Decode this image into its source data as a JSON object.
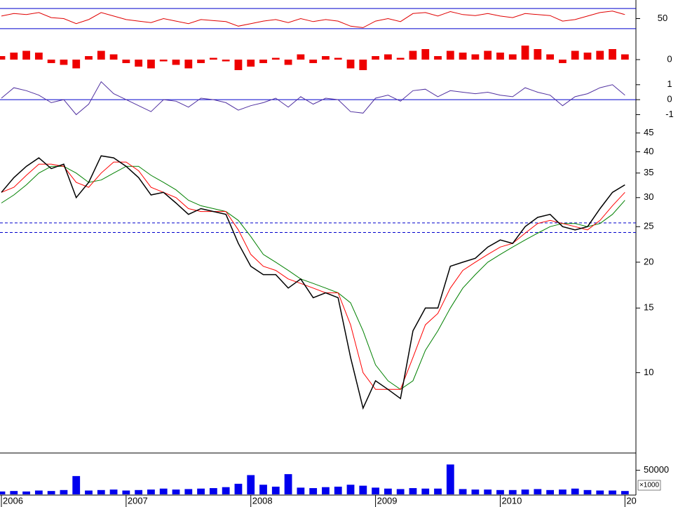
{
  "chart_data": [
    {
      "type": "line",
      "xlim": [
        2006,
        2011.06
      ],
      "ylim": [
        20,
        80
      ],
      "yticks": [
        50
      ],
      "hlines": [
        30,
        70
      ],
      "hline_color": "#0000cc",
      "x": [
        2006,
        2006.1,
        2006.2,
        2006.3,
        2006.4,
        2006.5,
        2006.6,
        2006.7,
        2006.8,
        2006.9,
        2007,
        2007.1,
        2007.2,
        2007.3,
        2007.4,
        2007.5,
        2007.6,
        2007.7,
        2007.8,
        2007.9,
        2008,
        2008.1,
        2008.2,
        2008.3,
        2008.4,
        2008.5,
        2008.6,
        2008.7,
        2008.8,
        2008.9,
        2009,
        2009.1,
        2009.2,
        2009.3,
        2009.4,
        2009.5,
        2009.6,
        2009.7,
        2009.8,
        2009.9,
        2010,
        2010.1,
        2010.2,
        2010.3,
        2010.4,
        2010.5,
        2010.6,
        2010.7,
        2010.8,
        2010.9,
        2011
      ],
      "series": [
        {
          "color": "#e00000",
          "values": [
            55,
            60,
            58,
            62,
            52,
            50,
            40,
            48,
            62,
            55,
            48,
            45,
            42,
            50,
            45,
            40,
            48,
            46,
            44,
            35,
            40,
            45,
            48,
            42,
            50,
            44,
            48,
            45,
            35,
            32,
            45,
            50,
            44,
            60,
            62,
            55,
            64,
            58,
            56,
            60,
            55,
            52,
            60,
            58,
            56,
            45,
            48,
            55,
            62,
            65,
            58
          ]
        }
      ]
    },
    {
      "type": "bar",
      "xlim": [
        2006,
        2011.06
      ],
      "ylim": [
        -0.8,
        1.2
      ],
      "yticks": [
        0
      ],
      "x": [
        2006,
        2006.1,
        2006.2,
        2006.3,
        2006.4,
        2006.5,
        2006.6,
        2006.7,
        2006.8,
        2006.9,
        2007,
        2007.1,
        2007.2,
        2007.3,
        2007.4,
        2007.5,
        2007.6,
        2007.7,
        2007.8,
        2007.9,
        2008,
        2008.1,
        2008.2,
        2008.3,
        2008.4,
        2008.5,
        2008.6,
        2008.7,
        2008.8,
        2008.9,
        2009,
        2009.1,
        2009.2,
        2009.3,
        2009.4,
        2009.5,
        2009.6,
        2009.7,
        2009.8,
        2009.9,
        2010,
        2010.1,
        2010.2,
        2010.3,
        2010.4,
        2010.5,
        2010.6,
        2010.7,
        2010.8,
        2010.9,
        2011
      ],
      "series": [
        {
          "color": "#ee0000",
          "values": [
            0.2,
            0.4,
            0.5,
            0.4,
            -0.2,
            -0.3,
            -0.5,
            0.2,
            0.5,
            0.3,
            -0.2,
            -0.4,
            -0.5,
            -0.1,
            -0.3,
            -0.5,
            -0.2,
            0.1,
            -0.1,
            -0.6,
            -0.4,
            -0.2,
            0.1,
            -0.3,
            0.3,
            -0.2,
            0.2,
            0.1,
            -0.5,
            -0.6,
            0.2,
            0.3,
            0.1,
            0.5,
            0.6,
            0.2,
            0.5,
            0.4,
            0.3,
            0.5,
            0.4,
            0.3,
            0.8,
            0.6,
            0.3,
            -0.2,
            0.5,
            0.4,
            0.5,
            0.6,
            0.3
          ]
        }
      ]
    },
    {
      "type": "line",
      "xlim": [
        2006,
        2011.06
      ],
      "ylim": [
        -1.4,
        1.6
      ],
      "yticks": [
        1,
        0,
        -1
      ],
      "hlines": [
        0
      ],
      "hline_color": "#0000cc",
      "x": [
        2006,
        2006.1,
        2006.2,
        2006.3,
        2006.4,
        2006.5,
        2006.6,
        2006.7,
        2006.8,
        2006.9,
        2007,
        2007.1,
        2007.2,
        2007.3,
        2007.4,
        2007.5,
        2007.6,
        2007.7,
        2007.8,
        2007.9,
        2008,
        2008.1,
        2008.2,
        2008.3,
        2008.4,
        2008.5,
        2008.6,
        2008.7,
        2008.8,
        2008.9,
        2009,
        2009.1,
        2009.2,
        2009.3,
        2009.4,
        2009.5,
        2009.6,
        2009.7,
        2009.8,
        2009.9,
        2010,
        2010.1,
        2010.2,
        2010.3,
        2010.4,
        2010.5,
        2010.6,
        2010.7,
        2010.8,
        2010.9,
        2011
      ],
      "series": [
        {
          "color": "#5030a0",
          "values": [
            0.1,
            0.8,
            0.6,
            0.3,
            -0.2,
            0,
            -1,
            -0.3,
            1.2,
            0.4,
            0,
            -0.4,
            -0.8,
            0,
            -0.1,
            -0.5,
            0.1,
            0,
            -0.2,
            -0.7,
            -0.4,
            -0.2,
            0.1,
            -0.5,
            0.2,
            -0.3,
            0.1,
            0,
            -0.8,
            -0.9,
            0.1,
            0.3,
            -0.1,
            0.6,
            0.7,
            0.2,
            0.6,
            0.5,
            0.4,
            0.5,
            0.3,
            0.2,
            0.8,
            0.5,
            0.3,
            -0.4,
            0.2,
            0.4,
            0.8,
            1,
            0.3
          ]
        }
      ]
    },
    {
      "type": "line",
      "log_scale": true,
      "xlim": [
        2006,
        2011.06
      ],
      "ylim": [
        6.2,
        48
      ],
      "yticks": [
        10,
        15,
        20,
        25,
        30,
        35,
        40,
        45
      ],
      "hlines": [
        25.6,
        24.1
      ],
      "hline_color": "#0000cc",
      "hline_style": "dashed",
      "x": [
        2006,
        2006.1,
        2006.2,
        2006.3,
        2006.4,
        2006.5,
        2006.6,
        2006.7,
        2006.8,
        2006.9,
        2007,
        2007.1,
        2007.2,
        2007.3,
        2007.4,
        2007.5,
        2007.6,
        2007.7,
        2007.8,
        2007.9,
        2008,
        2008.1,
        2008.2,
        2008.3,
        2008.4,
        2008.5,
        2008.6,
        2008.7,
        2008.8,
        2008.9,
        2009,
        2009.1,
        2009.2,
        2009.3,
        2009.4,
        2009.5,
        2009.6,
        2009.7,
        2009.8,
        2009.9,
        2010,
        2010.1,
        2010.2,
        2010.3,
        2010.4,
        2010.5,
        2010.6,
        2010.7,
        2010.8,
        2010.9,
        2011
      ],
      "series": [
        {
          "color": "#008000",
          "values": [
            29,
            30.5,
            32.5,
            35,
            36.5,
            36.5,
            35,
            33,
            33.5,
            35,
            36.5,
            36.5,
            34.5,
            33,
            31.5,
            29.5,
            28.5,
            28,
            27.5,
            26,
            23.5,
            21,
            20,
            19,
            18,
            17.5,
            17,
            16.5,
            15.5,
            13,
            10.5,
            9.5,
            9,
            9.5,
            11.5,
            13,
            15,
            17,
            18.5,
            20,
            21,
            22,
            23,
            24,
            25,
            25.5,
            25.5,
            25,
            25.5,
            27,
            29.5
          ]
        },
        {
          "color": "#ff0000",
          "values": [
            31,
            32,
            34.5,
            37,
            37,
            36.5,
            33,
            32,
            35,
            37.5,
            37.5,
            35.5,
            32,
            31,
            30,
            28,
            27.5,
            27.5,
            27.5,
            24.5,
            21,
            19.5,
            19,
            18,
            17.5,
            17,
            16.5,
            16.5,
            13.5,
            10,
            9,
            9,
            9,
            11,
            13.5,
            14.5,
            17,
            19,
            20,
            21,
            22,
            22.5,
            24,
            25.5,
            26,
            25.5,
            25,
            24.5,
            26,
            28.5,
            31
          ]
        },
        {
          "color": "#000000",
          "values": [
            31,
            34,
            36.5,
            38.5,
            36,
            37,
            30,
            33,
            39,
            38.5,
            36.5,
            34,
            30.5,
            31,
            29,
            27,
            28,
            27.5,
            27,
            22.5,
            19.5,
            18.5,
            18.5,
            17,
            18,
            16,
            16.5,
            16,
            11,
            8,
            9.5,
            9,
            8.5,
            13,
            15,
            15,
            19.5,
            20,
            20.5,
            22,
            23,
            22.5,
            25,
            26.5,
            27,
            25,
            24.5,
            25,
            28,
            31,
            32.5
          ]
        }
      ]
    },
    {
      "type": "bar",
      "xlim": [
        2006,
        2011.06
      ],
      "ylim": [
        0,
        80000
      ],
      "yticks": [
        50000
      ],
      "unit_label": "×1000",
      "xticks": [
        2006,
        2007,
        2008,
        2009,
        2010,
        {
          "value": 2011,
          "label": "20"
        }
      ],
      "x": [
        2006,
        2006.1,
        2006.2,
        2006.3,
        2006.4,
        2006.5,
        2006.6,
        2006.7,
        2006.8,
        2006.9,
        2007,
        2007.1,
        2007.2,
        2007.3,
        2007.4,
        2007.5,
        2007.6,
        2007.7,
        2007.8,
        2007.9,
        2008,
        2008.1,
        2008.2,
        2008.3,
        2008.4,
        2008.5,
        2008.6,
        2008.7,
        2008.8,
        2008.9,
        2009,
        2009.1,
        2009.2,
        2009.3,
        2009.4,
        2009.5,
        2009.6,
        2009.7,
        2009.8,
        2009.9,
        2010,
        2010.1,
        2010.2,
        2010.3,
        2010.4,
        2010.5,
        2010.6,
        2010.7,
        2010.8,
        2010.9,
        2011
      ],
      "series": [
        {
          "color": "#0000ee",
          "values": [
            6000,
            7000,
            6000,
            8000,
            7000,
            9000,
            38000,
            8000,
            9000,
            10000,
            8000,
            9000,
            10000,
            12000,
            10000,
            11000,
            12000,
            13000,
            15000,
            22000,
            40000,
            20000,
            16000,
            42000,
            14000,
            13000,
            15000,
            16000,
            20000,
            18000,
            14000,
            12000,
            11000,
            13000,
            12000,
            12000,
            62000,
            11000,
            10000,
            10000,
            9000,
            9000,
            10000,
            11000,
            9000,
            10000,
            12000,
            9000,
            8000,
            8000,
            7000
          ]
        }
      ]
    }
  ]
}
